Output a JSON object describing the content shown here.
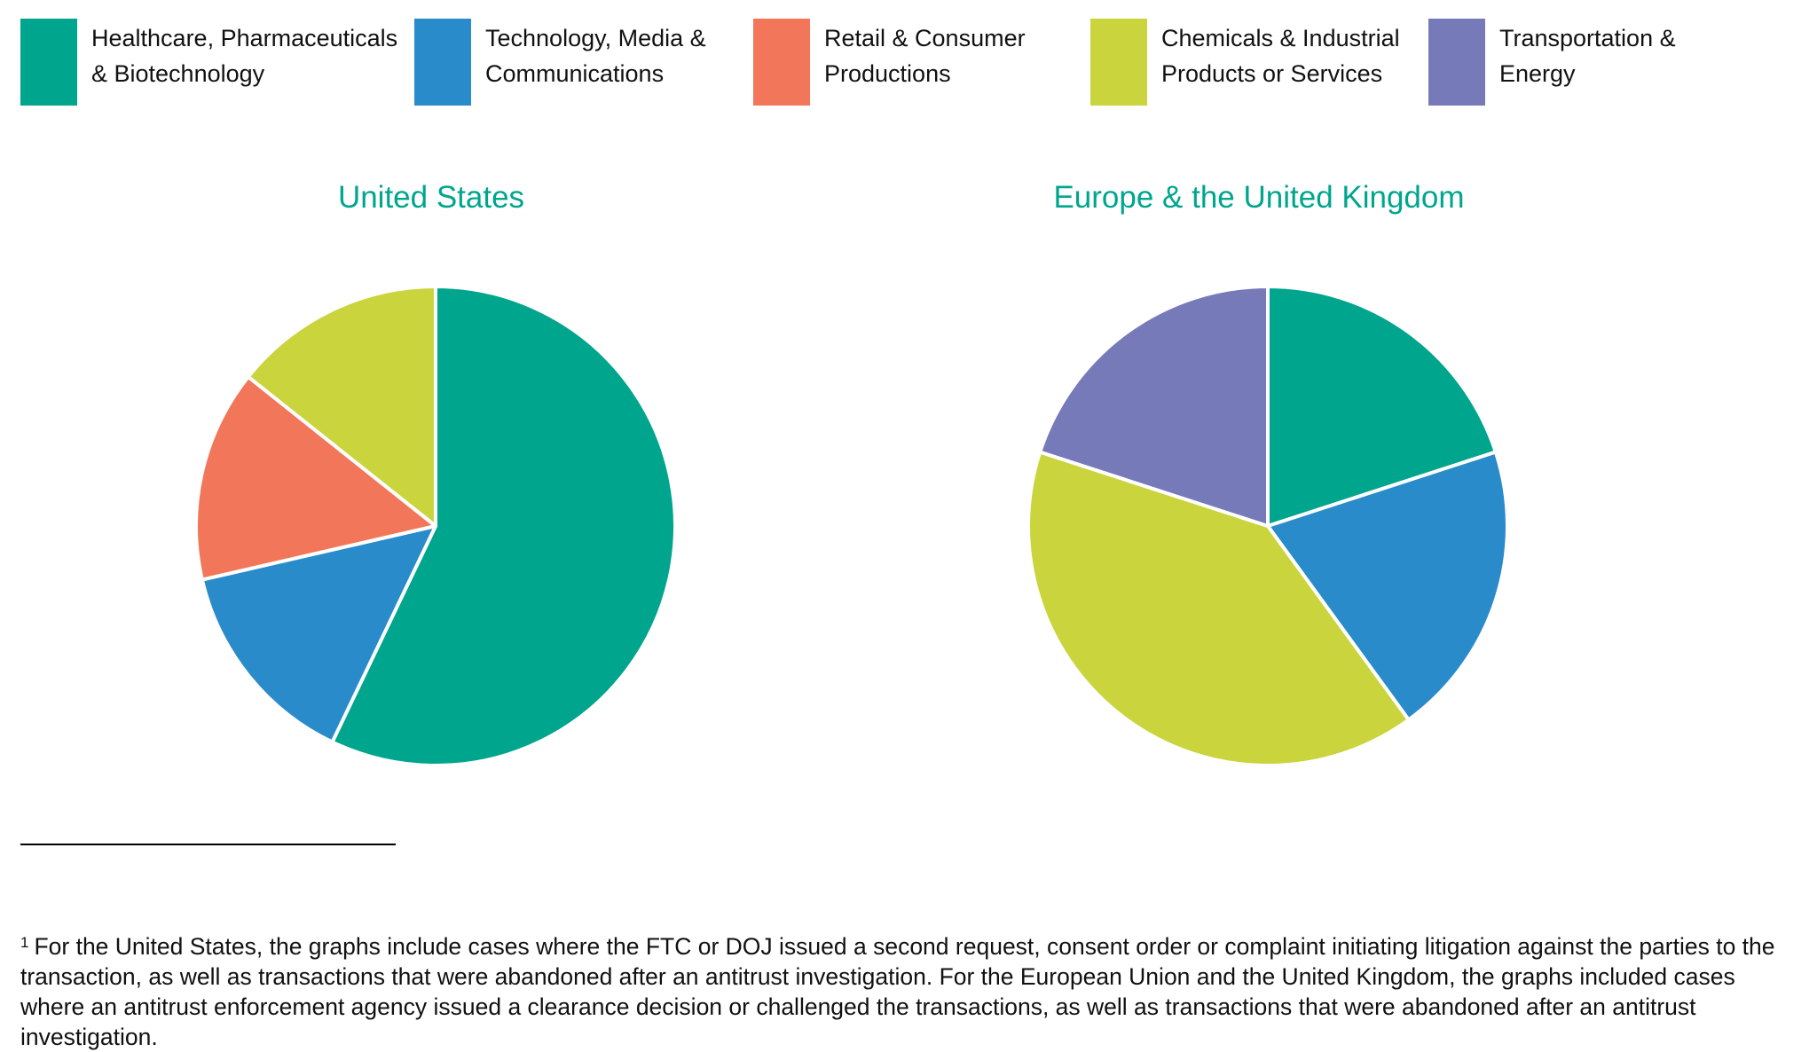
{
  "legend": [
    {
      "line1": "Healthcare, Pharmaceuticals",
      "line2": "& Biotechnology",
      "color": "#00a58e"
    },
    {
      "line1": "Technology, Media &",
      "line2": "Communications",
      "color": "#2a8bcb"
    },
    {
      "line1": "Retail & Consumer",
      "line2": "Productions",
      "color": "#f2775a"
    },
    {
      "line1": "Chemicals & Industrial",
      "line2": "Products or Services",
      "color": "#cad43c"
    },
    {
      "line1": "Transportation &",
      "line2": "Energy",
      "color": "#767ab9"
    }
  ],
  "charts": {
    "us": {
      "title": "United States"
    },
    "eu": {
      "title": "Europe & the United Kingdom"
    }
  },
  "footnote": {
    "marker": "1",
    "text": "For the United States, the graphs include cases where the FTC or DOJ issued a second request, consent order or complaint initiating litigation against the parties to the transaction, as well as transactions that were abandoned after an antitrust investigation. For the European Union and the United Kingdom, the graphs included cases where an antitrust enforcement agency issued a clearance decision or challenged the transactions, as well as transactions that were abandoned after an antitrust investigation."
  },
  "chart_data": [
    {
      "type": "pie",
      "title": "United States",
      "categories": [
        "Healthcare, Pharmaceuticals & Biotechnology",
        "Technology, Media & Communications",
        "Retail & Consumer Productions",
        "Chemicals & Industrial Products or Services"
      ],
      "values": [
        57.1,
        14.3,
        14.3,
        14.3
      ],
      "colors": [
        "#00a58e",
        "#2a8bcb",
        "#f2775a",
        "#cad43c"
      ],
      "start_angle": "12 o'clock, clockwise",
      "legend_position": "top"
    },
    {
      "type": "pie",
      "title": "Europe & the United Kingdom",
      "categories": [
        "Healthcare, Pharmaceuticals & Biotechnology",
        "Technology, Media & Communications",
        "Chemicals & Industrial Products or Services",
        "Transportation & Energy"
      ],
      "values": [
        20,
        20,
        40,
        20
      ],
      "colors": [
        "#00a58e",
        "#2a8bcb",
        "#cad43c",
        "#767ab9"
      ],
      "start_angle": "12 o'clock, clockwise",
      "legend_position": "top"
    }
  ]
}
